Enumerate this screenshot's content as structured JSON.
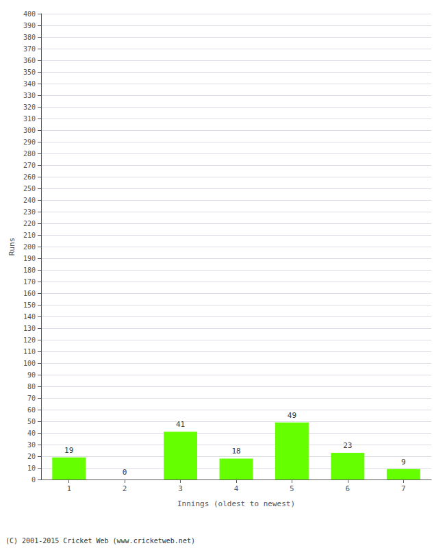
{
  "chart_data": {
    "type": "bar",
    "xlabel": "Innings (oldest to newest)",
    "ylabel": "Runs",
    "categories": [
      "1",
      "2",
      "3",
      "4",
      "5",
      "6",
      "7"
    ],
    "values": [
      19,
      0,
      41,
      18,
      49,
      23,
      9
    ],
    "color": "#66ff00",
    "ylim": [
      0,
      400
    ],
    "yticks": [
      0,
      10,
      20,
      30,
      40,
      50,
      60,
      70,
      80,
      90,
      100,
      110,
      120,
      130,
      140,
      150,
      160,
      170,
      180,
      190,
      200,
      210,
      220,
      230,
      240,
      250,
      260,
      270,
      280,
      290,
      300,
      310,
      320,
      330,
      340,
      350,
      360,
      370,
      380,
      390,
      400
    ],
    "grid": true,
    "data_labels": true,
    "annotations": [
      "(C) 2001-2015 Cricket Web (www.cricketweb.net)"
    ]
  }
}
